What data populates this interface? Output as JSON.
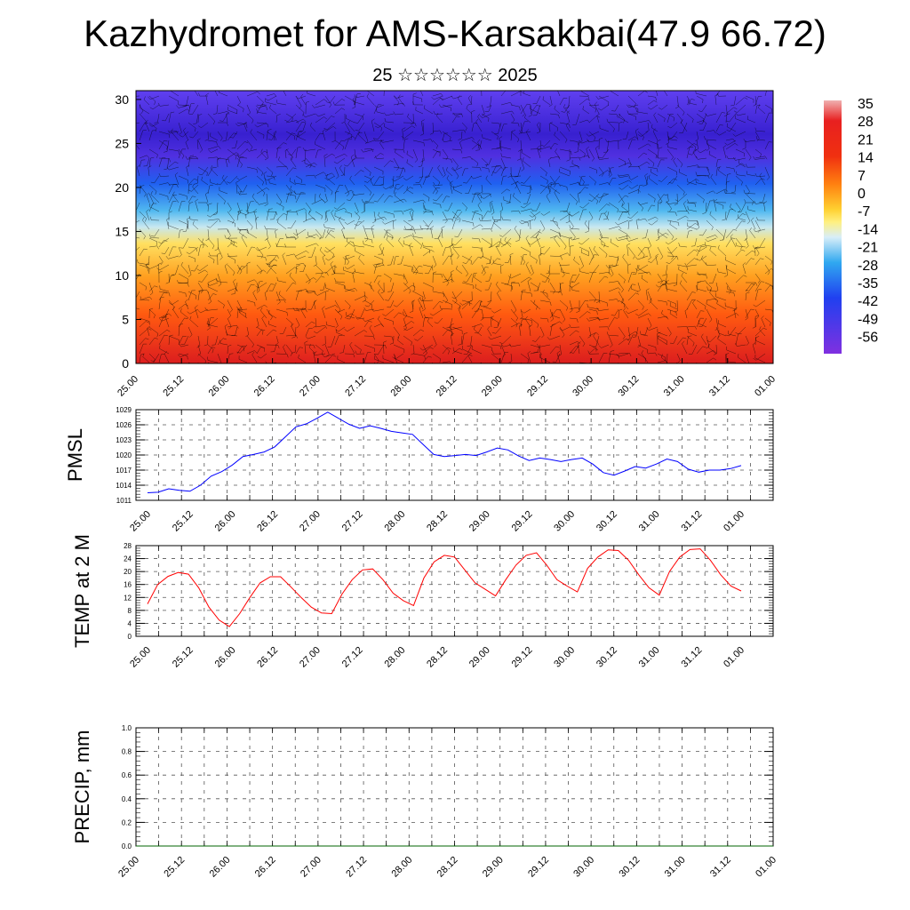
{
  "header": {
    "title": "Kazhydromet for AMS-Karsakbai(47.9 66.72)",
    "subtitle": "25 ☆☆☆☆☆☆ 2025"
  },
  "colors": {
    "pmsl_line": "#0000ff",
    "temp_line": "#ff0000",
    "grid": "#444444"
  },
  "time_ticks": [
    "25.00",
    "25.12",
    "26.00",
    "26.12",
    "27.00",
    "27.12",
    "28.00",
    "28.12",
    "29.00",
    "29.12",
    "30.00",
    "30.12",
    "31.00",
    "31.12",
    "01.00"
  ],
  "chart_data": [
    {
      "type": "heatmap",
      "title": "",
      "ylabel": "",
      "ylim": [
        0,
        31
      ],
      "yticks": [
        "0",
        "5",
        "10",
        "15",
        "20",
        "25",
        "30"
      ],
      "colorbar": {
        "labels": [
          "35",
          "28",
          "21",
          "14",
          "7",
          "0",
          "-7",
          "-14",
          "-21",
          "-28",
          "-35",
          "-42",
          "-49",
          "-56"
        ],
        "range": [
          -63,
          35
        ]
      },
      "description_fields": {
        "overlay": "wind barbs"
      }
    },
    {
      "type": "line",
      "ylabel": "PMSL",
      "ylim": [
        1011,
        1029
      ],
      "yticks": [
        "1011",
        "1014",
        "1017",
        "1020",
        "1023",
        "1026",
        "1029"
      ],
      "series": [
        {
          "values": [
            1012.5,
            1012.6,
            1013.3,
            1013.0,
            1012.8,
            1014.0,
            1015.8,
            1016.7,
            1018.0,
            1019.7,
            1020.1,
            1020.6,
            1021.6,
            1023.6,
            1025.6,
            1026.2,
            1027.3,
            1028.5,
            1027.3,
            1026.1,
            1025.3,
            1025.8,
            1025.3,
            1024.7,
            1024.4,
            1024.1,
            1022.1,
            1020.1,
            1019.7,
            1019.9,
            1020.1,
            1019.9,
            1020.6,
            1021.4,
            1021.0,
            1019.8,
            1018.9,
            1019.4,
            1019.1,
            1018.7,
            1019.1,
            1019.4,
            1018.2,
            1016.5,
            1016.0,
            1016.8,
            1017.7,
            1017.4,
            1018.2,
            1019.2,
            1018.7,
            1017.2,
            1016.6,
            1017.0,
            1017.0,
            1017.3,
            1017.9
          ]
        }
      ]
    },
    {
      "type": "line",
      "ylabel": "TEMP at 2 M",
      "ylim": [
        0,
        28
      ],
      "yticks": [
        "0",
        "4",
        "8",
        "12",
        "16",
        "20",
        "24",
        "28"
      ],
      "series": [
        {
          "values": [
            10,
            16,
            18.5,
            19.7,
            19.2,
            15,
            9,
            5,
            3,
            7,
            12,
            16.5,
            18.4,
            18.4,
            15.3,
            12,
            9,
            7.2,
            7,
            13,
            17.5,
            20.5,
            20.8,
            17.5,
            13.3,
            11,
            9.5,
            18,
            23,
            25,
            24.5,
            20.5,
            16.5,
            14.5,
            12.5,
            17.5,
            22,
            25,
            25.8,
            22,
            17.5,
            15.5,
            13.7,
            21,
            24.5,
            26.7,
            26.5,
            23.5,
            19,
            15,
            12.7,
            20,
            24.5,
            26.8,
            27,
            23.5,
            19,
            15.5,
            14
          ]
        }
      ]
    },
    {
      "type": "line",
      "ylabel": "PRECIP, mm",
      "ylim": [
        0,
        1
      ],
      "yticks": [
        "0.0",
        "0.2",
        "0.4",
        "0.6",
        "0.8",
        "1.0"
      ],
      "series": [
        {
          "values": [
            0,
            0,
            0,
            0,
            0,
            0,
            0,
            0,
            0,
            0,
            0,
            0,
            0,
            0,
            0,
            0,
            0,
            0,
            0,
            0,
            0,
            0,
            0,
            0,
            0,
            0,
            0,
            0,
            0,
            0,
            0,
            0,
            0,
            0,
            0,
            0,
            0,
            0,
            0,
            0,
            0,
            0,
            0,
            0,
            0,
            0,
            0,
            0,
            0,
            0,
            0,
            0,
            0,
            0,
            0,
            0,
            0,
            0,
            0
          ]
        }
      ]
    }
  ]
}
